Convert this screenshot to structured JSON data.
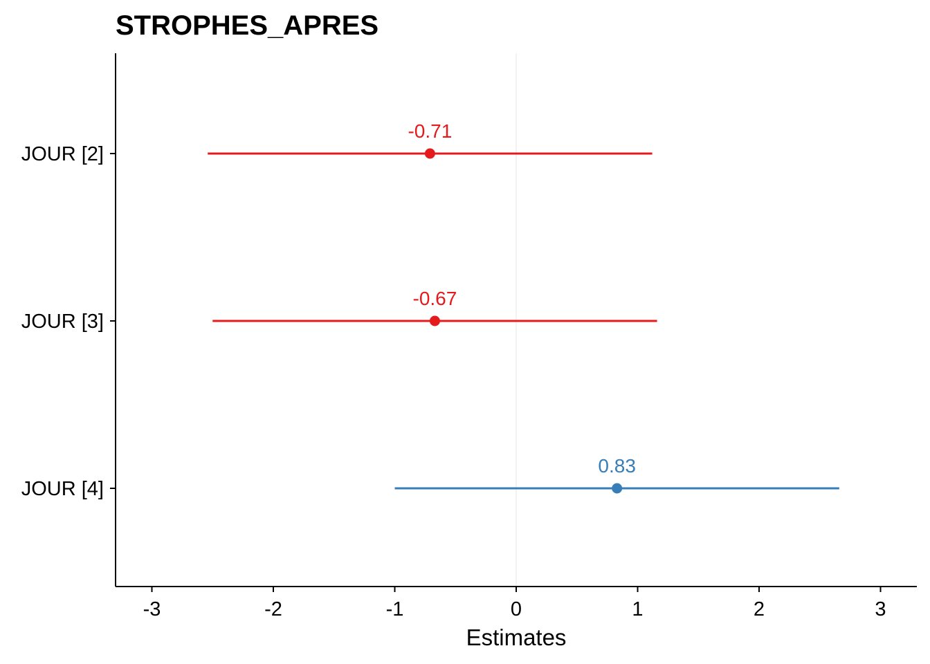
{
  "chart_data": {
    "type": "forest",
    "title": "STROPHES_APRES",
    "xlabel": "Estimates",
    "ylabel": "",
    "xlim": [
      -3.3,
      3.3
    ],
    "x_ticks": [
      -3,
      -2,
      -1,
      0,
      1,
      2,
      3
    ],
    "x_tick_labels": [
      "-3",
      "-2",
      "-1",
      "0",
      "1",
      "2",
      "3"
    ],
    "reference_line": 0,
    "grid": false,
    "legend": "none",
    "colors": {
      "negative": "#e41a1c",
      "positive": "#377eb8",
      "reference": "#ebebeb",
      "axis": "#000000"
    },
    "rows": [
      {
        "term": "JOUR [2]",
        "estimate": -0.71,
        "ci_low": -2.54,
        "ci_high": 1.12,
        "label": "-0.71"
      },
      {
        "term": "JOUR [3]",
        "estimate": -0.67,
        "ci_low": -2.5,
        "ci_high": 1.16,
        "label": "-0.67"
      },
      {
        "term": "JOUR [4]",
        "estimate": 0.83,
        "ci_low": -1.0,
        "ci_high": 2.66,
        "label": "0.83"
      }
    ]
  }
}
